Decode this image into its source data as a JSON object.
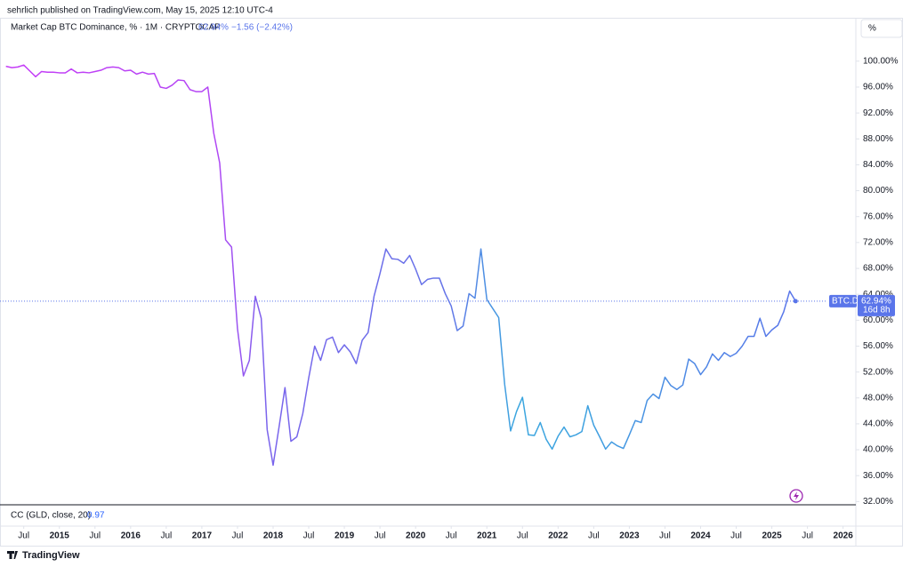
{
  "header": {
    "text": "sehrlich published on TradingView.com, May 15, 2025 12:10 UTC-4"
  },
  "footer": {
    "brand": "TradingView"
  },
  "indicator": {
    "name": "CC (GLD, close, 20)",
    "value": "0.97"
  },
  "scale_button": "%",
  "chart_data": {
    "type": "line",
    "title": "Market Cap BTC Dominance, % · 1M · CRYPTOCAP",
    "last_value_label": "62.94%",
    "change_label": "−1.56 (−2.42%)",
    "countdown": "16d 8h",
    "x": [
      "2014-04",
      "2014-05",
      "2014-06",
      "2014-07",
      "2014-08",
      "2014-09",
      "2014-10",
      "2014-11",
      "2014-12",
      "2015-01",
      "2015-02",
      "2015-03",
      "2015-04",
      "2015-05",
      "2015-06",
      "2015-07",
      "2015-08",
      "2015-09",
      "2015-10",
      "2015-11",
      "2015-12",
      "2016-01",
      "2016-02",
      "2016-03",
      "2016-04",
      "2016-05",
      "2016-06",
      "2016-07",
      "2016-08",
      "2016-09",
      "2016-10",
      "2016-11",
      "2016-12",
      "2017-01",
      "2017-02",
      "2017-03",
      "2017-04",
      "2017-05",
      "2017-06",
      "2017-07",
      "2017-08",
      "2017-09",
      "2017-10",
      "2017-11",
      "2017-12",
      "2018-01",
      "2018-02",
      "2018-03",
      "2018-04",
      "2018-05",
      "2018-06",
      "2018-07",
      "2018-08",
      "2018-09",
      "2018-10",
      "2018-11",
      "2018-12",
      "2019-01",
      "2019-02",
      "2019-03",
      "2019-04",
      "2019-05",
      "2019-06",
      "2019-07",
      "2019-08",
      "2019-09",
      "2019-10",
      "2019-11",
      "2019-12",
      "2020-01",
      "2020-02",
      "2020-03",
      "2020-04",
      "2020-05",
      "2020-06",
      "2020-07",
      "2020-08",
      "2020-09",
      "2020-10",
      "2020-11",
      "2020-12",
      "2021-01",
      "2021-02",
      "2021-03",
      "2021-04",
      "2021-05",
      "2021-06",
      "2021-07",
      "2021-08",
      "2021-09",
      "2021-10",
      "2021-11",
      "2021-12",
      "2022-01",
      "2022-02",
      "2022-03",
      "2022-04",
      "2022-05",
      "2022-06",
      "2022-07",
      "2022-08",
      "2022-09",
      "2022-10",
      "2022-11",
      "2022-12",
      "2023-01",
      "2023-02",
      "2023-03",
      "2023-04",
      "2023-05",
      "2023-06",
      "2023-07",
      "2023-08",
      "2023-09",
      "2023-10",
      "2023-11",
      "2023-12",
      "2024-01",
      "2024-02",
      "2024-03",
      "2024-04",
      "2024-05",
      "2024-06",
      "2024-07",
      "2024-08",
      "2024-09",
      "2024-10",
      "2024-11",
      "2024-12",
      "2025-01",
      "2025-02",
      "2025-03",
      "2025-04",
      "2025-05"
    ],
    "series": [
      {
        "name": "BTC.D",
        "color": "#5a75ea",
        "color_stops": [
          {
            "x": "2014-04",
            "color": "#c53cf7"
          },
          {
            "x": "2017-03",
            "color": "#b346f4"
          },
          {
            "x": "2017-12",
            "color": "#7a64ec"
          },
          {
            "x": "2020-06",
            "color": "#6574e8"
          },
          {
            "x": "2021-06",
            "color": "#3ba6df"
          },
          {
            "x": "2022-06",
            "color": "#3ea1e0"
          },
          {
            "x": "2023-06",
            "color": "#4b8fe3"
          },
          {
            "x": "2025-05",
            "color": "#5a75ea"
          }
        ],
        "values": [
          99.2,
          99.0,
          99.1,
          99.4,
          98.5,
          97.6,
          98.4,
          98.3,
          98.3,
          98.2,
          98.2,
          98.8,
          98.2,
          98.3,
          98.2,
          98.4,
          98.6,
          99.0,
          99.1,
          99.0,
          98.5,
          98.6,
          98.0,
          98.3,
          98.0,
          98.1,
          96.0,
          95.8,
          96.3,
          97.1,
          97.0,
          95.6,
          95.3,
          95.3,
          96.0,
          88.9,
          84.3,
          72.4,
          71.3,
          58.7,
          51.4,
          53.8,
          63.7,
          60.3,
          43.1,
          37.6,
          43.5,
          49.6,
          41.3,
          42.0,
          45.6,
          51.1,
          56.0,
          53.8,
          57.0,
          57.4,
          55.0,
          56.2,
          55.1,
          53.3,
          56.9,
          58.1,
          63.7,
          67.2,
          71.0,
          69.5,
          69.4,
          68.8,
          70.0,
          67.9,
          65.5,
          66.3,
          66.5,
          66.5,
          64.1,
          62.2,
          58.4,
          59.1,
          64.1,
          63.4,
          71.0,
          63.2,
          61.8,
          60.4,
          50.1,
          42.9,
          45.9,
          48.1,
          42.3,
          42.2,
          44.2,
          41.6,
          40.1,
          42.1,
          43.5,
          42.0,
          42.3,
          42.8,
          46.8,
          43.8,
          42.0,
          40.1,
          41.2,
          40.6,
          40.2,
          42.3,
          44.5,
          44.2,
          47.6,
          48.6,
          47.9,
          51.2,
          49.9,
          49.3,
          50.0,
          54.0,
          53.3,
          51.6,
          52.8,
          54.8,
          53.8,
          55.0,
          54.4,
          54.9,
          56.0,
          57.5,
          57.5,
          60.3,
          57.5,
          58.5,
          59.2,
          61.3,
          64.5,
          62.94
        ]
      }
    ],
    "xlim": [
      "2014-03",
      "2026-03"
    ],
    "xticks": [
      {
        "value": "2014-07",
        "label": "Jul"
      },
      {
        "value": "2015-01",
        "label": "2015"
      },
      {
        "value": "2015-07",
        "label": "Jul"
      },
      {
        "value": "2016-01",
        "label": "2016"
      },
      {
        "value": "2016-07",
        "label": "Jul"
      },
      {
        "value": "2017-01",
        "label": "2017"
      },
      {
        "value": "2017-07",
        "label": "Jul"
      },
      {
        "value": "2018-01",
        "label": "2018"
      },
      {
        "value": "2018-07",
        "label": "Jul"
      },
      {
        "value": "2019-01",
        "label": "2019"
      },
      {
        "value": "2019-07",
        "label": "Jul"
      },
      {
        "value": "2020-01",
        "label": "2020"
      },
      {
        "value": "2020-07",
        "label": "Jul"
      },
      {
        "value": "2021-01",
        "label": "2021"
      },
      {
        "value": "2021-07",
        "label": "Jul"
      },
      {
        "value": "2022-01",
        "label": "2022"
      },
      {
        "value": "2022-07",
        "label": "Jul"
      },
      {
        "value": "2023-01",
        "label": "2023"
      },
      {
        "value": "2023-07",
        "label": "Jul"
      },
      {
        "value": "2024-01",
        "label": "2024"
      },
      {
        "value": "2024-07",
        "label": "Jul"
      },
      {
        "value": "2025-01",
        "label": "2025"
      },
      {
        "value": "2025-07",
        "label": "Jul"
      },
      {
        "value": "2026-01",
        "label": "2026"
      }
    ],
    "ylim": [
      31.5,
      106.7
    ],
    "yticks": [
      {
        "value": 32,
        "label": "32.00%"
      },
      {
        "value": 36,
        "label": "36.00%"
      },
      {
        "value": 40,
        "label": "40.00%"
      },
      {
        "value": 44,
        "label": "44.00%"
      },
      {
        "value": 48,
        "label": "48.00%"
      },
      {
        "value": 52,
        "label": "52.00%"
      },
      {
        "value": 56,
        "label": "56.00%"
      },
      {
        "value": 60,
        "label": "60.00%"
      },
      {
        "value": 64,
        "label": "64.00%"
      },
      {
        "value": 68,
        "label": "68.00%"
      },
      {
        "value": 72,
        "label": "72.00%"
      },
      {
        "value": 76,
        "label": "76.00%"
      },
      {
        "value": 80,
        "label": "80.00%"
      },
      {
        "value": 84,
        "label": "84.00%"
      },
      {
        "value": 88,
        "label": "88.00%"
      },
      {
        "value": 92,
        "label": "92.00%"
      },
      {
        "value": 96,
        "label": "96.00%"
      },
      {
        "value": 100,
        "label": "100.00%"
      }
    ],
    "grid": false
  }
}
